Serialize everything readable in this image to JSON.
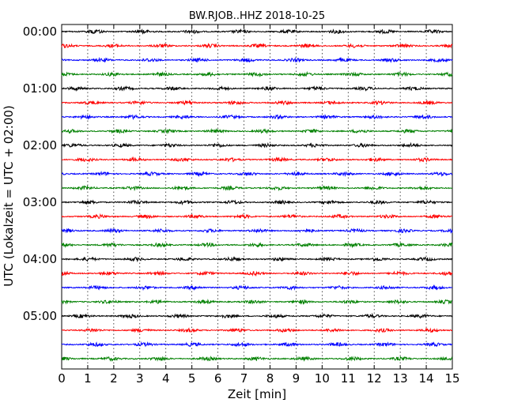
{
  "chart_data": {
    "type": "line",
    "title": "BW.RJOB..HHZ 2018-10-25",
    "xlabel": "Zeit  [min]",
    "ylabel": "UTC (Lokalzeit = UTC + 02:00)",
    "xlim": [
      0,
      15
    ],
    "x_ticks": [
      "0",
      "1",
      "2",
      "3",
      "4",
      "5",
      "6",
      "7",
      "8",
      "9",
      "10",
      "11",
      "12",
      "13",
      "14",
      "15"
    ],
    "y_ticks": [
      "00:00",
      "01:00",
      "02:00",
      "03:00",
      "04:00",
      "05:00"
    ],
    "y_tick_rows": [
      0,
      4,
      8,
      12,
      16,
      20
    ],
    "grid": "vertical dotted lines at each minute",
    "traces": 24,
    "trace_interval_min": 15,
    "trace_colors": [
      "#000000",
      "#ff0000",
      "#0000ff",
      "#008000"
    ]
  }
}
